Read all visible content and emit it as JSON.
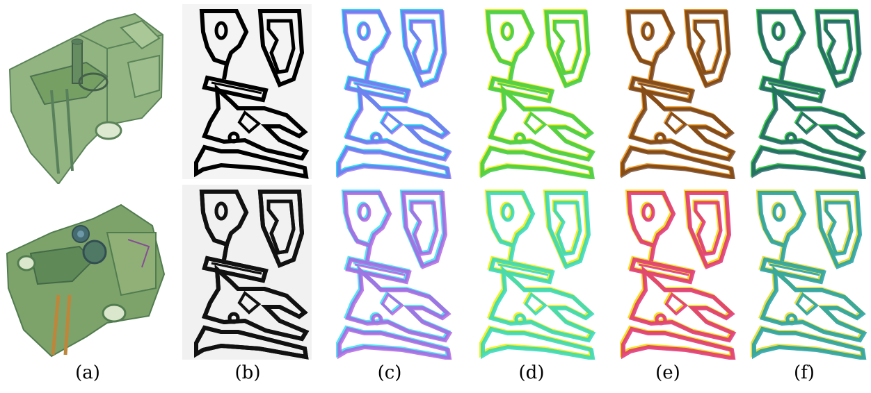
{
  "figure": {
    "captions": [
      "(a)",
      "(b)",
      "(c)",
      "(d)",
      "(e)",
      "(f)"
    ],
    "rows": [
      "top",
      "bottom"
    ],
    "palette": {
      "volume_green": "#5f8f4a",
      "volume_dark": "#2f5a35",
      "edge_black": "#000000",
      "c_cyan": "#25e0f0",
      "c_violet": "#8a5cf0",
      "d_green": "#3ccc48",
      "d_yellow": "#f3f020",
      "e_orange": "#f0a030",
      "e_magenta": "#e0307a",
      "f_teal": "#1f9fa8",
      "f_yellow": "#e8e040"
    }
  }
}
